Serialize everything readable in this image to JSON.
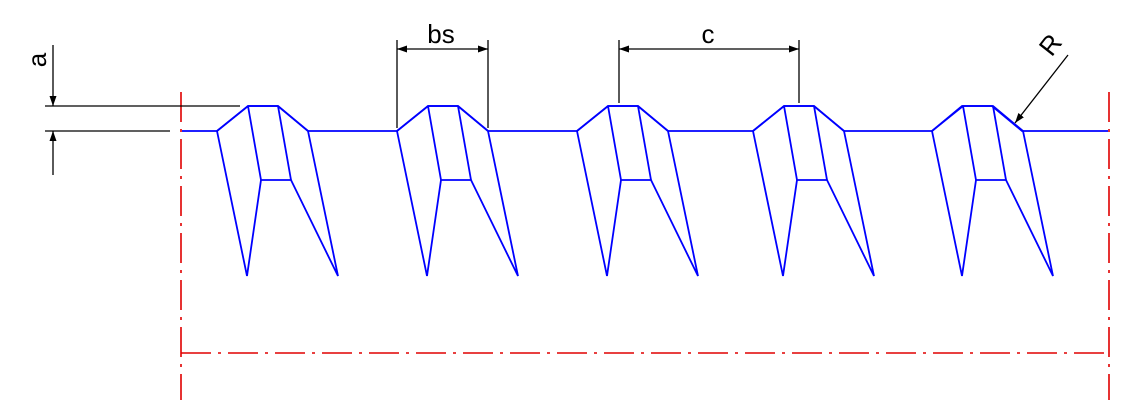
{
  "labels": {
    "a": "a",
    "bs": "bs",
    "c": "c",
    "r": "R"
  },
  "colors": {
    "profile": "#0000ff",
    "centerline": "#e00000",
    "dimension": "#000000",
    "background": "#ffffff"
  },
  "teeth_count": 5
}
